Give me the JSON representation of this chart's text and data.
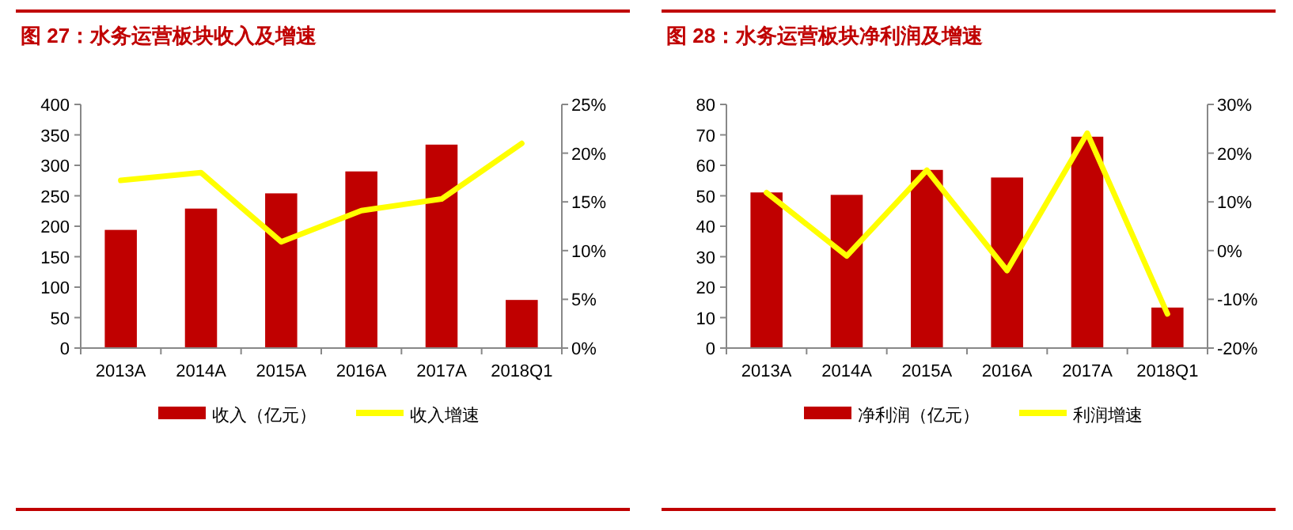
{
  "chart_data": [
    {
      "type": "bar",
      "title": "图 27：水务运营板块收入及增速",
      "categories": [
        "2013A",
        "2014A",
        "2015A",
        "2016A",
        "2017A",
        "2018Q1"
      ],
      "series": [
        {
          "name": "收入（亿元）",
          "color": "#c00000",
          "values": [
            194,
            229,
            254,
            290,
            334,
            79
          ]
        },
        {
          "name": "收入增速",
          "type": "line",
          "axis": "y2",
          "color": "#ffff00",
          "values": [
            17.2,
            18.0,
            10.9,
            14.1,
            15.3,
            21.0
          ]
        }
      ],
      "ylim": [
        0,
        400
      ],
      "yticks": [
        0,
        50,
        100,
        150,
        200,
        250,
        300,
        350,
        400
      ],
      "y2lim": [
        0,
        25
      ],
      "y2ticks": [
        {
          "value": 0,
          "label": "0%"
        },
        {
          "value": 5,
          "label": "5%"
        },
        {
          "value": 10,
          "label": "10%"
        },
        {
          "value": 15,
          "label": "15%"
        },
        {
          "value": 20,
          "label": "20%"
        },
        {
          "value": 25,
          "label": "25%"
        }
      ],
      "legend": "bottom",
      "grid": false
    },
    {
      "type": "bar",
      "title": "图 28：水务运营板块净利润及增速",
      "categories": [
        "2013A",
        "2014A",
        "2015A",
        "2016A",
        "2017A",
        "2018Q1"
      ],
      "series": [
        {
          "name": "净利润（亿元）",
          "color": "#c00000",
          "values": [
            51.1,
            50.3,
            58.5,
            56.0,
            69.4,
            13.3
          ]
        },
        {
          "name": "利润增速",
          "type": "line",
          "axis": "y2",
          "color": "#ffff00",
          "values": [
            11.9,
            -1.1,
            16.5,
            -4.1,
            24.1,
            -13.0
          ]
        }
      ],
      "ylim": [
        0,
        80
      ],
      "yticks": [
        0,
        10,
        20,
        30,
        40,
        50,
        60,
        70,
        80
      ],
      "y2lim": [
        -20,
        30
      ],
      "y2ticks": [
        {
          "value": -20,
          "label": "-20%"
        },
        {
          "value": -10,
          "label": "-10%"
        },
        {
          "value": 0,
          "label": "0%"
        },
        {
          "value": 10,
          "label": "10%"
        },
        {
          "value": 20,
          "label": "20%"
        },
        {
          "value": 30,
          "label": "30%"
        }
      ],
      "legend": "bottom",
      "grid": false
    }
  ]
}
